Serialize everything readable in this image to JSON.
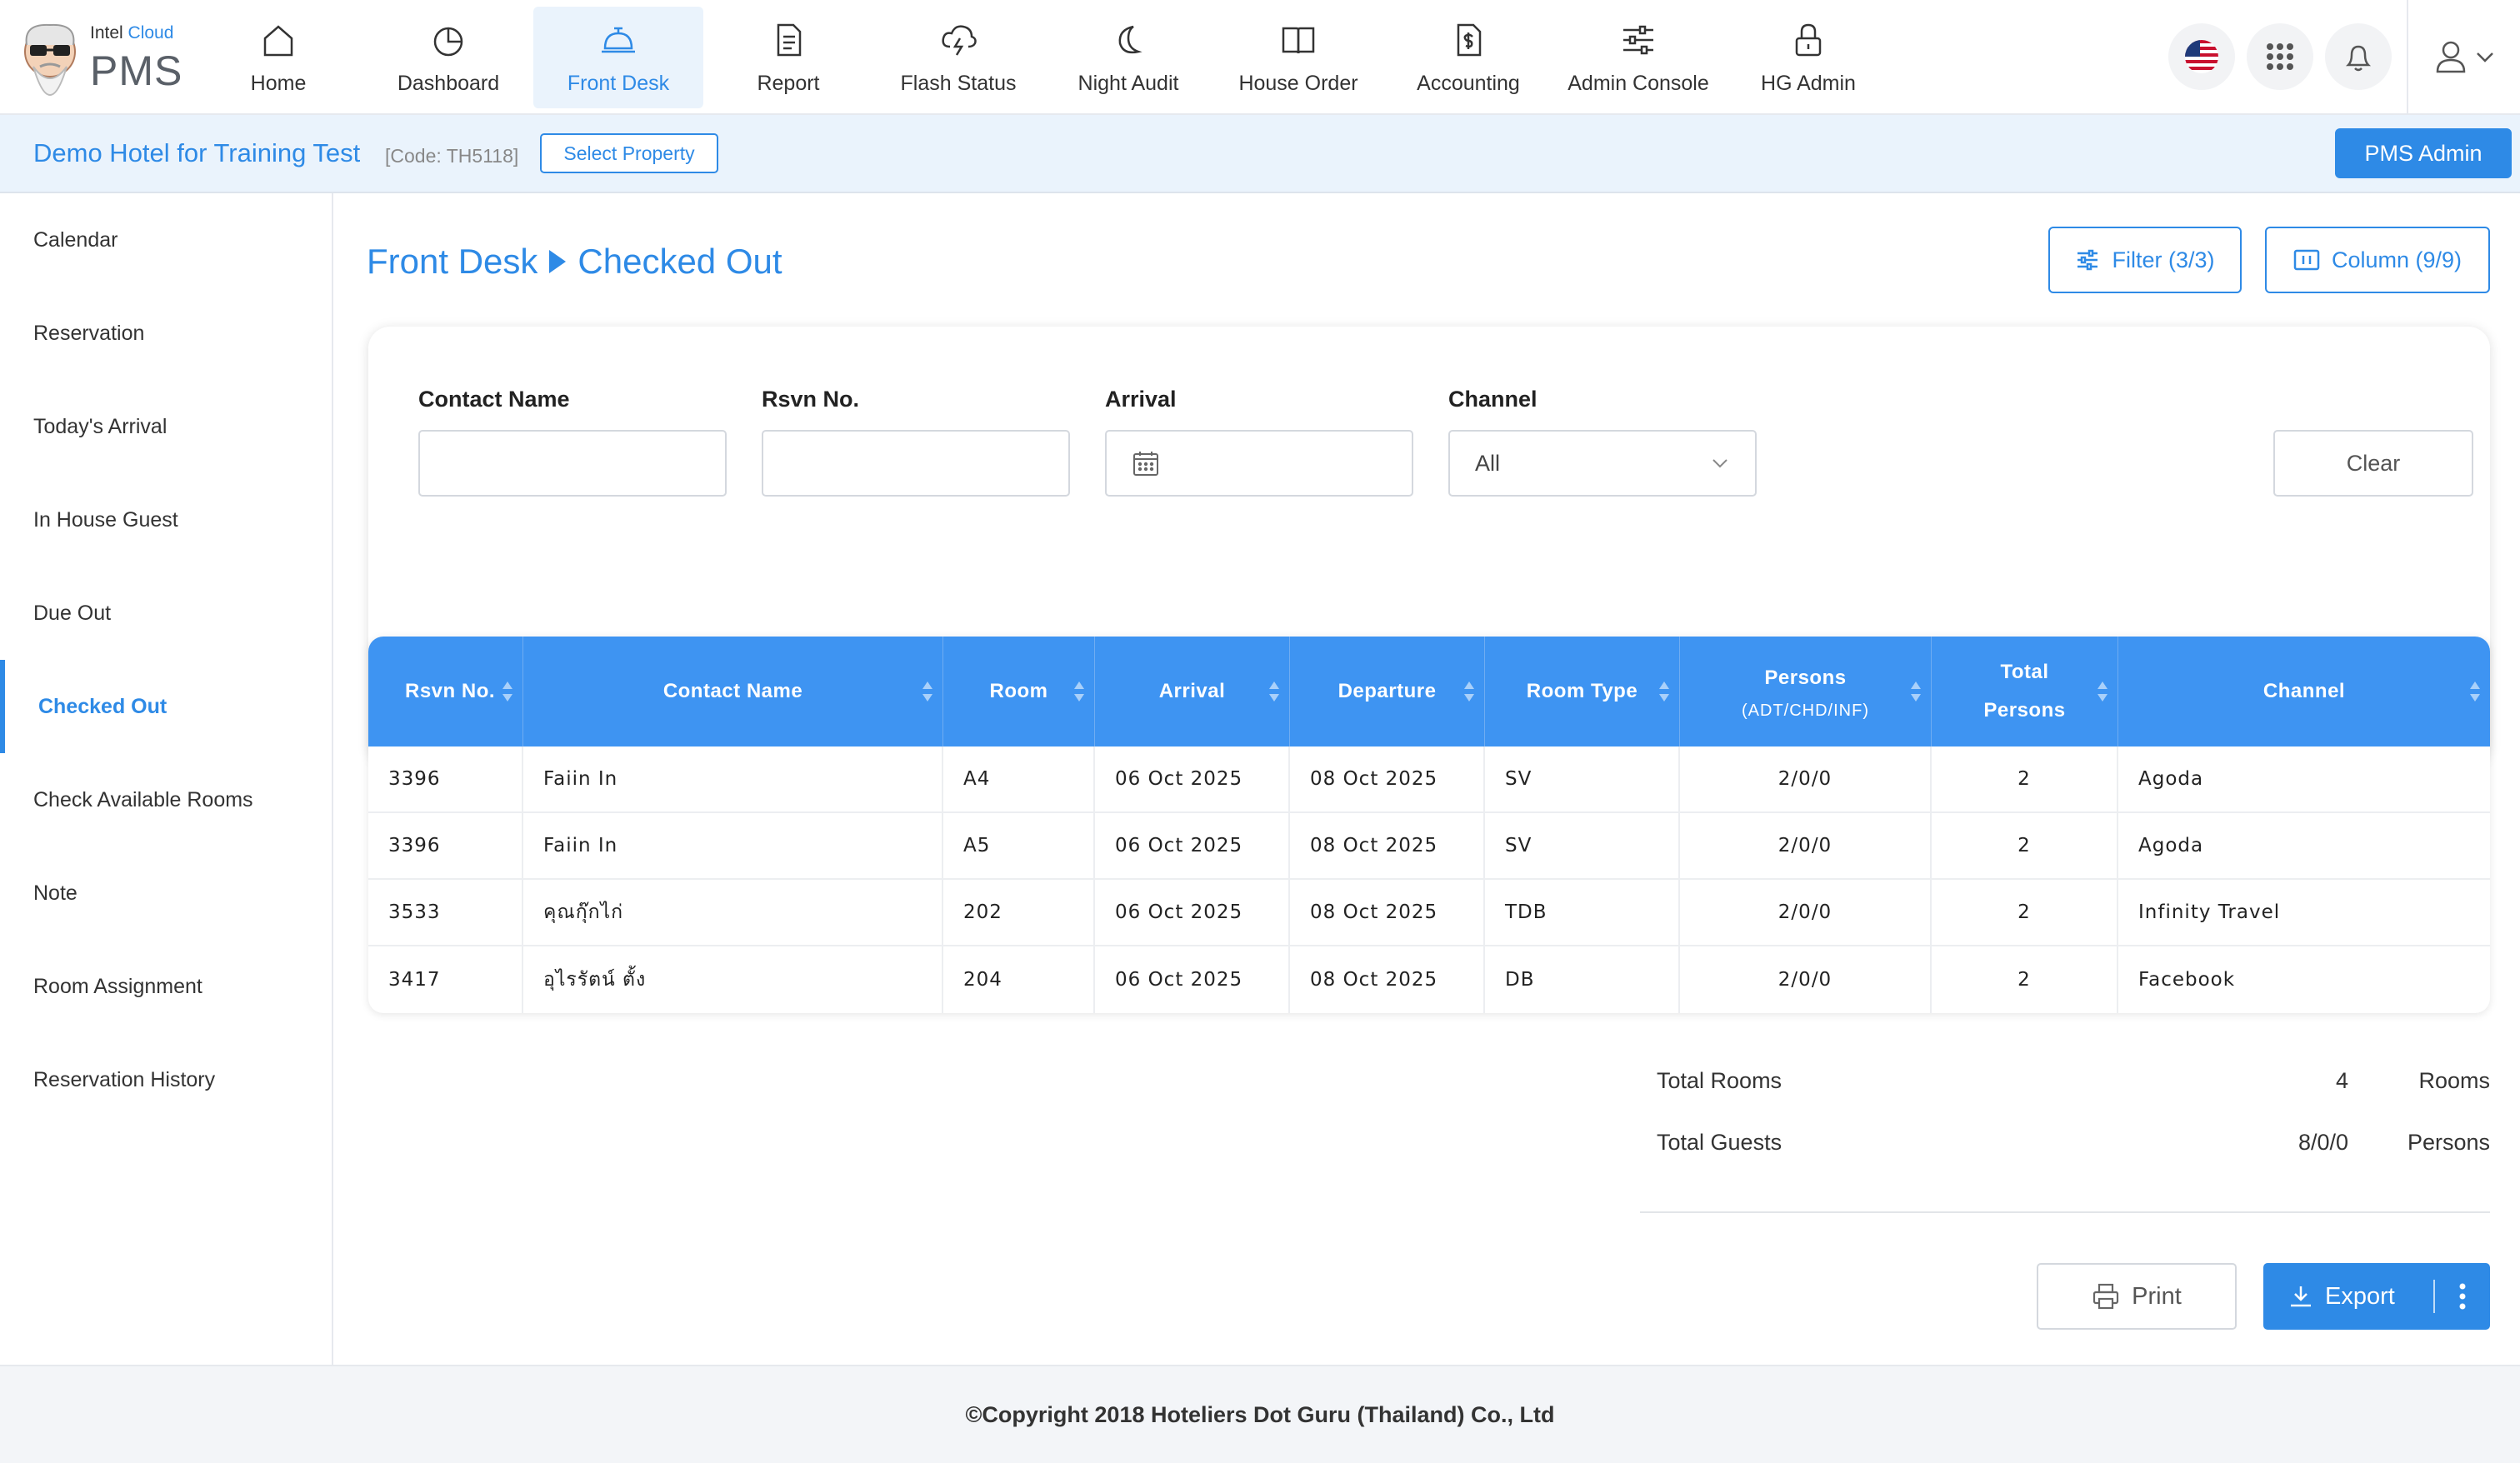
{
  "brand": {
    "line1_a": "Intel",
    "line1_b": "Cloud",
    "line2": "PMS"
  },
  "nav": [
    {
      "label": "Home",
      "icon": "home-icon"
    },
    {
      "label": "Dashboard",
      "icon": "pie-chart-icon"
    },
    {
      "label": "Front Desk",
      "icon": "service-bell-icon",
      "active": true
    },
    {
      "label": "Report",
      "icon": "document-icon"
    },
    {
      "label": "Flash Status",
      "icon": "cloud-lightning-icon"
    },
    {
      "label": "Night Audit",
      "icon": "moon-icon"
    },
    {
      "label": "House Order",
      "icon": "book-icon"
    },
    {
      "label": "Accounting",
      "icon": "dollar-file-icon"
    },
    {
      "label": "Admin Console",
      "icon": "sliders-icon"
    },
    {
      "label": "HG Admin",
      "icon": "lock-icon"
    }
  ],
  "property": {
    "hotel_name": "Demo Hotel for Training Test",
    "code": "[Code: TH5118]",
    "select_label": "Select Property",
    "admin_label": "PMS Admin"
  },
  "sidebar": {
    "items": [
      {
        "label": "Calendar"
      },
      {
        "label": "Reservation"
      },
      {
        "label": "Today's Arrival"
      },
      {
        "label": "In House Guest"
      },
      {
        "label": "Due Out"
      },
      {
        "label": "Checked Out",
        "active": true
      },
      {
        "label": "Check Available Rooms"
      },
      {
        "label": "Note"
      },
      {
        "label": "Room Assignment"
      },
      {
        "label": "Reservation History"
      }
    ]
  },
  "breadcrumb": {
    "section": "Front Desk",
    "page": "Checked Out"
  },
  "toolbar": {
    "filter_label": "Filter (3/3)",
    "column_label": "Column (9/9)"
  },
  "filters": {
    "contact_name_label": "Contact Name",
    "contact_name_value": "",
    "rsvn_label": "Rsvn No.",
    "rsvn_value": "",
    "arrival_label": "Arrival",
    "arrival_value": "",
    "channel_label": "Channel",
    "channel_value": "All",
    "clear_label": "Clear"
  },
  "table": {
    "headers": [
      {
        "label": "Rsvn No.",
        "sub": ""
      },
      {
        "label": "Contact Name",
        "sub": ""
      },
      {
        "label": "Room",
        "sub": ""
      },
      {
        "label": "Arrival",
        "sub": ""
      },
      {
        "label": "Departure",
        "sub": ""
      },
      {
        "label": "Room Type",
        "sub": ""
      },
      {
        "label": "Persons",
        "sub": "(ADT/CHD/INF)"
      },
      {
        "label": "Total",
        "sub": "Persons"
      },
      {
        "label": "Channel",
        "sub": ""
      }
    ],
    "rows": [
      [
        "3396",
        "Faiin In",
        "A4",
        "06 Oct 2025",
        "08 Oct 2025",
        "SV",
        "2/0/0",
        "2",
        "Agoda"
      ],
      [
        "3396",
        "Faiin In",
        "A5",
        "06 Oct 2025",
        "08 Oct 2025",
        "SV",
        "2/0/0",
        "2",
        "Agoda"
      ],
      [
        "3533",
        "คุณกุ๊กไก่",
        "202",
        "06 Oct 2025",
        "08 Oct 2025",
        "TDB",
        "2/0/0",
        "2",
        "Infinity Travel"
      ],
      [
        "3417",
        "อุไรรัตน์ ตั้ง",
        "204",
        "06 Oct 2025",
        "08 Oct 2025",
        "DB",
        "2/0/0",
        "2",
        "Facebook"
      ]
    ]
  },
  "totals": {
    "rooms_label": "Total Rooms",
    "rooms_value": "4",
    "rooms_unit": "Rooms",
    "guests_label": "Total Guests",
    "guests_value": "8/0/0",
    "guests_unit": "Persons"
  },
  "actions": {
    "print_label": "Print",
    "export_label": "Export"
  },
  "footer": {
    "copyright": "©Copyright 2018 Hoteliers Dot Guru (Thailand) Co., Ltd"
  },
  "colors": {
    "accent": "#2e8ae6",
    "table_header": "#3e94f2",
    "prop_bar": "#eaf3fc"
  }
}
